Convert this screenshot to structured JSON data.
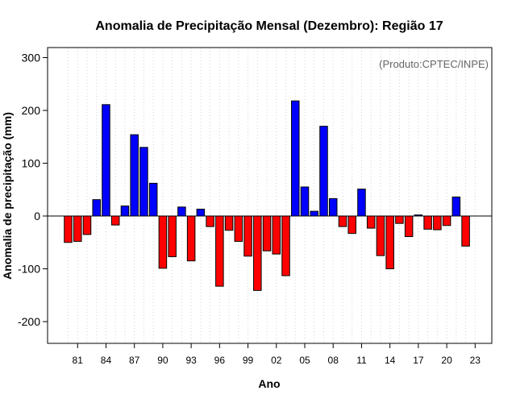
{
  "chart_data": {
    "type": "bar",
    "title": "Anomalia de Precipitação Mensal (Dezembro): Região 17",
    "xlabel": "Ano",
    "ylabel": "Anomalia de precipitação (mm)",
    "annotation": "(Produto:CPTEC/INPE)",
    "ylim": [
      -240,
      320
    ],
    "yticks": [
      -200,
      -100,
      0,
      100,
      200,
      300
    ],
    "xtick_labels": [
      "81",
      "84",
      "87",
      "90",
      "93",
      "96",
      "99",
      "02",
      "05",
      "08",
      "11",
      "14",
      "17",
      "20",
      "23"
    ],
    "xtick_years": [
      1981,
      1984,
      1987,
      1990,
      1993,
      1996,
      1999,
      2002,
      2005,
      2008,
      2011,
      2014,
      2017,
      2020,
      2023
    ],
    "categories": [
      1980,
      1981,
      1982,
      1983,
      1984,
      1985,
      1986,
      1987,
      1988,
      1989,
      1990,
      1991,
      1992,
      1993,
      1994,
      1995,
      1996,
      1997,
      1998,
      1999,
      2000,
      2001,
      2002,
      2003,
      2004,
      2005,
      2006,
      2007,
      2008,
      2009,
      2010,
      2011,
      2012,
      2013,
      2014,
      2015,
      2016,
      2017,
      2018,
      2019,
      2020,
      2021,
      2022,
      2023
    ],
    "values": [
      -50,
      -48,
      -35,
      31,
      211,
      -17,
      19,
      154,
      130,
      62,
      -99,
      -77,
      17,
      -85,
      13,
      -20,
      -133,
      -27,
      -48,
      -76,
      -141,
      -66,
      -72,
      -113,
      218,
      55,
      9,
      170,
      33,
      -20,
      -33,
      51,
      -23,
      -75,
      -100,
      -14,
      -39,
      2,
      -25,
      -26,
      -18,
      36,
      -57,
      0
    ],
    "grid": "vertical dotted",
    "colors": {
      "positive": "#0000ff",
      "negative": "#ff0000",
      "zero_line": "#000000",
      "grid": "#d3d3d3"
    }
  }
}
